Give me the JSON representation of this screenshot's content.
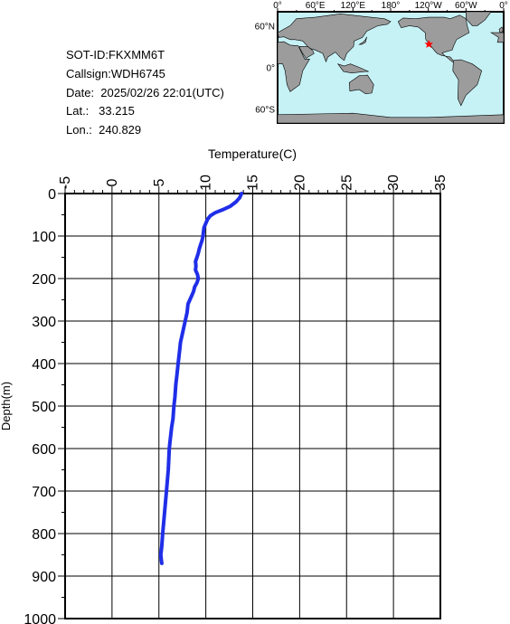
{
  "info": {
    "sot_id": "SOT-ID:FKXMM6T",
    "callsign": "Callsign:WDH6745",
    "date": "Date:  2025/02/26 22:01(UTC)",
    "lat": "Lat.:   33.215",
    "lon": "Lon.:  240.829"
  },
  "map": {
    "top_labels": [
      "0°",
      "60°E",
      "120°E",
      "180°",
      "120°W",
      "60°W",
      "0°"
    ],
    "side_labels": [
      "60°N",
      "0°",
      "60°S"
    ],
    "ocean_color": "#c6f2f6",
    "land_color": "#9c9c9c",
    "marker_color": "#ff0000",
    "marker_lat": 33.215,
    "marker_lon": 240.829
  },
  "chart_data": {
    "type": "line",
    "xlabel": "Temperature(C)",
    "ylabel": "Depth(m)",
    "xlim": [
      -5,
      35
    ],
    "ylim": [
      1000,
      0
    ],
    "x_ticks": [
      -5,
      0,
      5,
      10,
      15,
      20,
      25,
      30,
      35
    ],
    "y_ticks": [
      0,
      100,
      200,
      300,
      400,
      500,
      600,
      700,
      800,
      900,
      1000
    ],
    "grid": true,
    "series_color": "#1f2ee8",
    "series": [
      {
        "x": [
          13.8,
          13.6,
          13.2,
          12.6,
          11.8,
          11.0,
          10.5,
          10.2,
          10.0,
          9.8,
          9.75,
          9.7,
          9.6,
          9.45,
          9.3,
          9.2,
          9.05,
          8.9,
          8.95,
          8.9,
          9.1,
          9.2,
          9.05,
          8.8,
          8.7,
          8.5,
          8.3,
          8.1,
          8.0,
          7.8,
          7.5,
          7.3,
          7.2,
          7.05,
          6.9,
          6.8,
          6.7,
          6.6,
          6.5,
          6.35,
          6.2,
          6.1,
          6.0,
          5.8,
          5.6,
          5.4,
          5.3,
          5.2,
          5.25,
          5.3
        ],
        "y": [
          0,
          10,
          20,
          30,
          38,
          45,
          52,
          60,
          70,
          80,
          90,
          100,
          110,
          120,
          130,
          140,
          150,
          160,
          170,
          180,
          190,
          200,
          210,
          220,
          230,
          240,
          250,
          260,
          280,
          300,
          330,
          350,
          370,
          400,
          430,
          450,
          480,
          500,
          530,
          550,
          580,
          600,
          650,
          700,
          750,
          800,
          830,
          850,
          860,
          870
        ]
      }
    ]
  }
}
